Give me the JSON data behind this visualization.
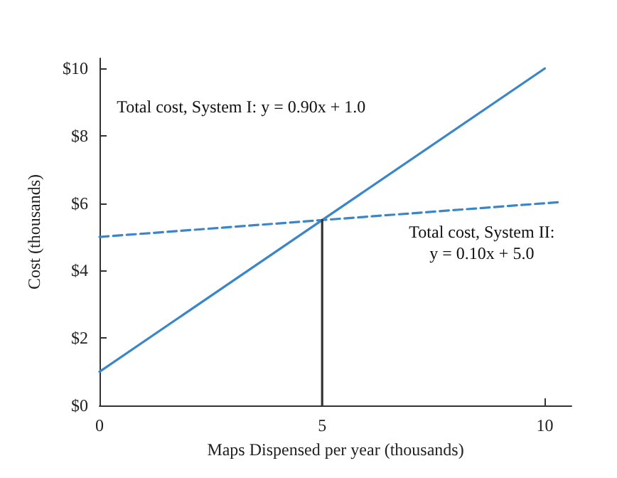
{
  "chart_data": {
    "type": "line",
    "xlabel": "Maps Dispensed per year (thousands)",
    "ylabel": "Cost (thousands)",
    "xlim": [
      0,
      10.6
    ],
    "xticks": [
      0,
      5,
      10
    ],
    "ylim": [
      0,
      10.3
    ],
    "yticks": [
      {
        "value": 0,
        "label": "$0"
      },
      {
        "value": 2,
        "label": "$2"
      },
      {
        "value": 4,
        "label": "$4"
      },
      {
        "value": 6,
        "label": "$6"
      },
      {
        "value": 8,
        "label": "$8"
      },
      {
        "value": 10,
        "label": "$10"
      }
    ],
    "series": [
      {
        "x": [
          0,
          10
        ],
        "values": [
          1.0,
          10.0
        ],
        "color": "#3a86c8",
        "line_style": "solid"
      },
      {
        "x": [
          0,
          10.3
        ],
        "values": [
          5.0,
          6.03
        ],
        "color": "#3a86c8",
        "line_style": "dashed"
      },
      {
        "x": [
          5,
          5
        ],
        "values": [
          0,
          5.5
        ],
        "color": "#333333",
        "line_style": "solid"
      }
    ],
    "annotations": [
      "Total cost, System I: y = 0.90x + 1.0",
      "Total cost, System II:\ny = 0.10x + 5.0"
    ],
    "grid": false,
    "marker": "none"
  }
}
